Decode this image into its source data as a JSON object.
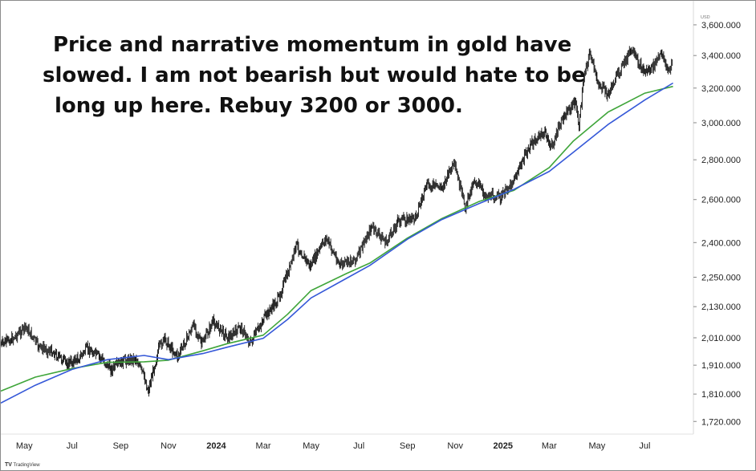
{
  "annotation": {
    "line1": "Price and narrative momentum in gold have",
    "line2": "slowed. I am not bearish but would hate to be",
    "line3": "long up here. Rebuy 3200 or 3000."
  },
  "watermark": {
    "logo": "TV",
    "text": "TradingView"
  },
  "chart_data": {
    "type": "line",
    "ylabel": "USD",
    "yscale": "log",
    "ylim": [
      1680,
      3720
    ],
    "x_range": [
      "2023-04-01",
      "2025-08-31"
    ],
    "y_ticks": [
      {
        "value": 3600,
        "label": "3,600.000"
      },
      {
        "value": 3400,
        "label": "3,400.000"
      },
      {
        "value": 3200,
        "label": "3,200.000"
      },
      {
        "value": 3000,
        "label": "3,000.000"
      },
      {
        "value": 2800,
        "label": "2,800.000"
      },
      {
        "value": 2600,
        "label": "2,600.000"
      },
      {
        "value": 2400,
        "label": "2,400.000"
      },
      {
        "value": 2250,
        "label": "2,250.000"
      },
      {
        "value": 2130,
        "label": "2,130.000"
      },
      {
        "value": 2010,
        "label": "2,010.000"
      },
      {
        "value": 1910,
        "label": "1,910.000"
      },
      {
        "value": 1810,
        "label": "1,810.000"
      },
      {
        "value": 1720,
        "label": "1,720.000"
      }
    ],
    "x_ticks": [
      {
        "date": "2023-05-01",
        "label": "May",
        "bold": false
      },
      {
        "date": "2023-07-01",
        "label": "Jul",
        "bold": false
      },
      {
        "date": "2023-09-01",
        "label": "Sep",
        "bold": false
      },
      {
        "date": "2023-11-01",
        "label": "Nov",
        "bold": false
      },
      {
        "date": "2024-01-01",
        "label": "2024",
        "bold": true
      },
      {
        "date": "2024-03-01",
        "label": "Mar",
        "bold": false
      },
      {
        "date": "2024-05-01",
        "label": "May",
        "bold": false
      },
      {
        "date": "2024-07-01",
        "label": "Jul",
        "bold": false
      },
      {
        "date": "2024-09-01",
        "label": "Sep",
        "bold": false
      },
      {
        "date": "2024-11-01",
        "label": "Nov",
        "bold": false
      },
      {
        "date": "2025-01-01",
        "label": "2025",
        "bold": true
      },
      {
        "date": "2025-03-01",
        "label": "Mar",
        "bold": false
      },
      {
        "date": "2025-05-01",
        "label": "May",
        "bold": false
      },
      {
        "date": "2025-07-01",
        "label": "Jul",
        "bold": false
      }
    ],
    "grid": false,
    "series": [
      {
        "type": "price",
        "color": "#111111",
        "points": [
          [
            "2023-04-01",
            1985
          ],
          [
            "2023-04-15",
            2005
          ],
          [
            "2023-05-03",
            2050
          ],
          [
            "2023-05-20",
            1975
          ],
          [
            "2023-06-05",
            1960
          ],
          [
            "2023-06-25",
            1915
          ],
          [
            "2023-07-10",
            1935
          ],
          [
            "2023-07-20",
            1970
          ],
          [
            "2023-08-05",
            1940
          ],
          [
            "2023-08-20",
            1895
          ],
          [
            "2023-09-05",
            1925
          ],
          [
            "2023-09-20",
            1935
          ],
          [
            "2023-10-01",
            1870
          ],
          [
            "2023-10-06",
            1820
          ],
          [
            "2023-10-20",
            1975
          ],
          [
            "2023-10-27",
            2005
          ],
          [
            "2023-11-13",
            1940
          ],
          [
            "2023-11-30",
            2040
          ],
          [
            "2023-12-04",
            2060
          ],
          [
            "2023-12-13",
            1985
          ],
          [
            "2023-12-28",
            2070
          ],
          [
            "2024-01-17",
            2010
          ],
          [
            "2024-02-01",
            2050
          ],
          [
            "2024-02-14",
            1990
          ],
          [
            "2024-03-01",
            2080
          ],
          [
            "2024-03-20",
            2160
          ],
          [
            "2024-04-05",
            2300
          ],
          [
            "2024-04-12",
            2390
          ],
          [
            "2024-04-30",
            2295
          ],
          [
            "2024-05-20",
            2420
          ],
          [
            "2024-06-07",
            2300
          ],
          [
            "2024-06-28",
            2330
          ],
          [
            "2024-07-17",
            2470
          ],
          [
            "2024-08-05",
            2400
          ],
          [
            "2024-08-20",
            2500
          ],
          [
            "2024-09-10",
            2510
          ],
          [
            "2024-09-26",
            2670
          ],
          [
            "2024-10-15",
            2660
          ],
          [
            "2024-10-30",
            2780
          ],
          [
            "2024-11-14",
            2560
          ],
          [
            "2024-11-25",
            2700
          ],
          [
            "2024-12-10",
            2620
          ],
          [
            "2024-12-30",
            2610
          ],
          [
            "2025-01-15",
            2700
          ],
          [
            "2025-02-05",
            2880
          ],
          [
            "2025-02-24",
            2950
          ],
          [
            "2025-03-03",
            2860
          ],
          [
            "2025-03-20",
            3040
          ],
          [
            "2025-04-03",
            3120
          ],
          [
            "2025-04-08",
            2980
          ],
          [
            "2025-04-15",
            3300
          ],
          [
            "2025-04-22",
            3420
          ],
          [
            "2025-05-01",
            3240
          ],
          [
            "2025-05-15",
            3160
          ],
          [
            "2025-05-28",
            3290
          ],
          [
            "2025-06-13",
            3430
          ],
          [
            "2025-06-30",
            3300
          ],
          [
            "2025-07-10",
            3320
          ],
          [
            "2025-07-23",
            3420
          ],
          [
            "2025-07-31",
            3290
          ],
          [
            "2025-08-06",
            3380
          ]
        ]
      },
      {
        "type": "moving-average",
        "color": "#3fa53a",
        "points": [
          [
            "2023-04-01",
            1820
          ],
          [
            "2023-05-15",
            1868
          ],
          [
            "2023-07-01",
            1898
          ],
          [
            "2023-08-15",
            1920
          ],
          [
            "2023-10-01",
            1922
          ],
          [
            "2023-11-01",
            1928
          ],
          [
            "2023-12-15",
            1962
          ],
          [
            "2024-01-15",
            1988
          ],
          [
            "2024-03-01",
            2020
          ],
          [
            "2024-04-01",
            2100
          ],
          [
            "2024-05-01",
            2195
          ],
          [
            "2024-06-15",
            2265
          ],
          [
            "2024-07-15",
            2310
          ],
          [
            "2024-09-01",
            2420
          ],
          [
            "2024-10-15",
            2510
          ],
          [
            "2024-12-01",
            2590
          ],
          [
            "2025-01-15",
            2645
          ],
          [
            "2025-03-01",
            2760
          ],
          [
            "2025-04-01",
            2900
          ],
          [
            "2025-05-15",
            3060
          ],
          [
            "2025-07-01",
            3170
          ],
          [
            "2025-08-06",
            3210
          ]
        ]
      },
      {
        "type": "moving-average",
        "color": "#3558d8",
        "points": [
          [
            "2023-04-01",
            1780
          ],
          [
            "2023-05-15",
            1840
          ],
          [
            "2023-07-01",
            1895
          ],
          [
            "2023-08-15",
            1930
          ],
          [
            "2023-10-01",
            1945
          ],
          [
            "2023-11-01",
            1930
          ],
          [
            "2023-12-15",
            1952
          ],
          [
            "2024-01-15",
            1975
          ],
          [
            "2024-03-01",
            2008
          ],
          [
            "2024-04-01",
            2080
          ],
          [
            "2024-05-01",
            2165
          ],
          [
            "2024-06-15",
            2245
          ],
          [
            "2024-07-15",
            2300
          ],
          [
            "2024-09-01",
            2415
          ],
          [
            "2024-10-15",
            2505
          ],
          [
            "2024-12-01",
            2580
          ],
          [
            "2025-01-15",
            2650
          ],
          [
            "2025-03-01",
            2740
          ],
          [
            "2025-04-01",
            2840
          ],
          [
            "2025-05-15",
            2990
          ],
          [
            "2025-07-01",
            3130
          ],
          [
            "2025-08-06",
            3230
          ]
        ]
      }
    ]
  }
}
